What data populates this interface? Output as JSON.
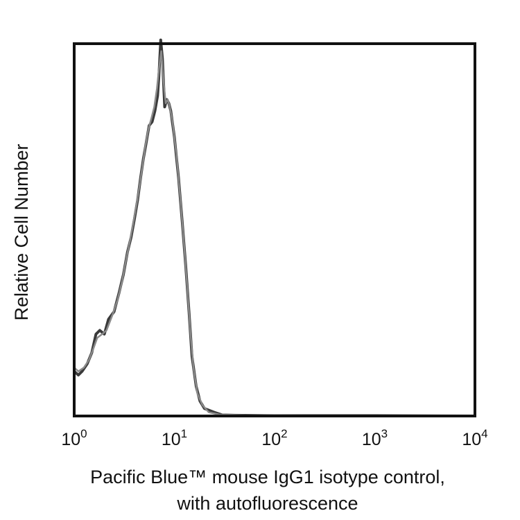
{
  "chart_data": {
    "type": "line",
    "title": "",
    "xlabel_line1": "Pacific Blue™ mouse IgG1 isotype control,",
    "xlabel_line2": "with autofluorescence",
    "ylabel": "Relative Cell Number",
    "x_scale": "log",
    "xlim": [
      1,
      10000
    ],
    "ylim": [
      0,
      100
    ],
    "grid": false,
    "legend": "none",
    "x_ticks": [
      {
        "value": 1,
        "base": "10",
        "exp": "0"
      },
      {
        "value": 10,
        "base": "10",
        "exp": "1"
      },
      {
        "value": 100,
        "base": "10",
        "exp": "2"
      },
      {
        "value": 1000,
        "base": "10",
        "exp": "3"
      },
      {
        "value": 10000,
        "base": "10",
        "exp": "4"
      }
    ],
    "series": [
      {
        "color": "#3a3a3a",
        "points": [
          [
            1.0,
            12
          ],
          [
            1.1,
            11
          ],
          [
            1.2,
            12
          ],
          [
            1.35,
            14
          ],
          [
            1.5,
            17
          ],
          [
            1.65,
            22
          ],
          [
            1.8,
            23
          ],
          [
            2.0,
            22
          ],
          [
            2.2,
            26
          ],
          [
            2.5,
            28
          ],
          [
            2.8,
            33
          ],
          [
            3.1,
            38
          ],
          [
            3.4,
            44
          ],
          [
            3.7,
            48
          ],
          [
            4.0,
            53
          ],
          [
            4.3,
            58
          ],
          [
            4.6,
            64
          ],
          [
            4.9,
            69
          ],
          [
            5.2,
            73
          ],
          [
            5.6,
            78
          ],
          [
            6.0,
            79
          ],
          [
            6.4,
            82
          ],
          [
            6.8,
            86
          ],
          [
            7.0,
            91
          ],
          [
            7.3,
            101
          ],
          [
            7.6,
            96
          ],
          [
            8.0,
            83
          ],
          [
            8.4,
            85
          ],
          [
            8.8,
            84
          ],
          [
            9.2,
            82
          ],
          [
            10.0,
            75
          ],
          [
            11.0,
            64
          ],
          [
            12.0,
            52
          ],
          [
            13.0,
            40
          ],
          [
            14.0,
            28
          ],
          [
            15.0,
            16
          ],
          [
            16.5,
            8
          ],
          [
            18.0,
            4
          ],
          [
            20.0,
            2
          ],
          [
            25.0,
            1
          ],
          [
            30.0,
            0.3
          ],
          [
            40.0,
            0.2
          ],
          [
            100.0,
            0.1
          ],
          [
            1000.0,
            0.1
          ],
          [
            10000.0,
            0
          ]
        ]
      },
      {
        "color": "#8a8a8a",
        "points": [
          [
            1.0,
            13
          ],
          [
            1.1,
            12
          ],
          [
            1.25,
            13
          ],
          [
            1.4,
            15
          ],
          [
            1.55,
            18
          ],
          [
            1.7,
            21
          ],
          [
            1.9,
            22
          ],
          [
            2.1,
            23
          ],
          [
            2.4,
            27
          ],
          [
            2.7,
            31
          ],
          [
            3.0,
            36
          ],
          [
            3.3,
            42
          ],
          [
            3.6,
            47
          ],
          [
            3.9,
            52
          ],
          [
            4.2,
            57
          ],
          [
            4.5,
            62
          ],
          [
            4.8,
            67
          ],
          [
            5.1,
            72
          ],
          [
            5.5,
            77
          ],
          [
            5.9,
            80
          ],
          [
            6.3,
            83
          ],
          [
            6.7,
            88
          ],
          [
            7.0,
            93
          ],
          [
            7.4,
            98
          ],
          [
            7.8,
            90
          ],
          [
            8.2,
            84
          ],
          [
            8.6,
            85
          ],
          [
            9.0,
            83
          ],
          [
            9.6,
            79
          ],
          [
            10.5,
            70
          ],
          [
            11.5,
            58
          ],
          [
            12.5,
            46
          ],
          [
            13.5,
            34
          ],
          [
            14.5,
            22
          ],
          [
            15.5,
            13
          ],
          [
            17.0,
            6
          ],
          [
            19.0,
            3
          ],
          [
            22.0,
            1
          ],
          [
            28.0,
            0.4
          ],
          [
            50.0,
            0.2
          ],
          [
            500.0,
            0.1
          ],
          [
            10000.0,
            0
          ]
        ]
      }
    ]
  }
}
